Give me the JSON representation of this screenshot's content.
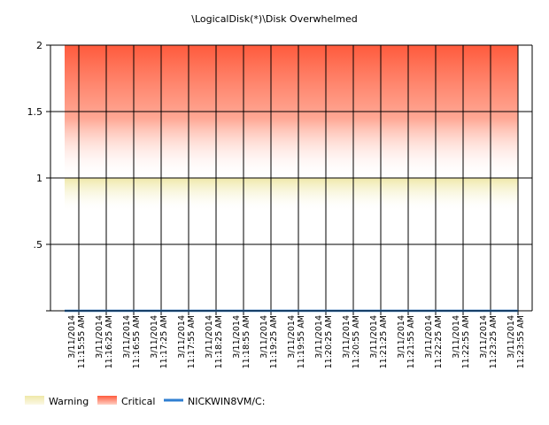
{
  "chart_data": {
    "type": "line",
    "title": "\\LogicalDisk(*)\\Disk Overwhelmed",
    "xlabel": "",
    "ylabel": "",
    "ylim": [
      0,
      2
    ],
    "y_ticks": [
      {
        "value": 0,
        "label": ""
      },
      {
        "value": 0.5,
        "label": ".5"
      },
      {
        "value": 1,
        "label": "1"
      },
      {
        "value": 1.5,
        "label": "1.5"
      },
      {
        "value": 2,
        "label": "2"
      }
    ],
    "x": [
      "3/11/2014 11:15:55 AM",
      "3/11/2014 11:16:25 AM",
      "3/11/2014 11:16:55 AM",
      "3/11/2014 11:17:25 AM",
      "3/11/2014 11:17:55 AM",
      "3/11/2014 11:18:25 AM",
      "3/11/2014 11:18:55 AM",
      "3/11/2014 11:19:25 AM",
      "3/11/2014 11:19:55 AM",
      "3/11/2014 11:20:25 AM",
      "3/11/2014 11:20:55 AM",
      "3/11/2014 11:21:25 AM",
      "3/11/2014 11:21:55 AM",
      "3/11/2014 11:22:25 AM",
      "3/11/2014 11:22:55 AM",
      "3/11/2014 11:23:25 AM",
      "3/11/2014 11:23:55 AM"
    ],
    "x_tick_lines": [
      [
        "3/11/2014",
        "11:15:55 AM"
      ],
      [
        "3/11/2014",
        "11:16:25 AM"
      ],
      [
        "3/11/2014",
        "11:16:55 AM"
      ],
      [
        "3/11/2014",
        "11:17:25 AM"
      ],
      [
        "3/11/2014",
        "11:17:55 AM"
      ],
      [
        "3/11/2014",
        "11:18:25 AM"
      ],
      [
        "3/11/2014",
        "11:18:55 AM"
      ],
      [
        "3/11/2014",
        "11:19:25 AM"
      ],
      [
        "3/11/2014",
        "11:19:55 AM"
      ],
      [
        "3/11/2014",
        "11:20:25 AM"
      ],
      [
        "3/11/2014",
        "11:20:55 AM"
      ],
      [
        "3/11/2014",
        "11:21:25 AM"
      ],
      [
        "3/11/2014",
        "11:21:55 AM"
      ],
      [
        "3/11/2014",
        "11:22:25 AM"
      ],
      [
        "3/11/2014",
        "11:22:55 AM"
      ],
      [
        "3/11/2014",
        "11:23:25 AM"
      ],
      [
        "3/11/2014",
        "11:23:55 AM"
      ]
    ],
    "bands": [
      {
        "name": "Warning",
        "from": 0.75,
        "to": 1,
        "color": "#efe8a8"
      },
      {
        "name": "Critical",
        "from": 1,
        "to": 2,
        "color": "#ff5a3c"
      }
    ],
    "series": [
      {
        "name": "NICKWIN8VM/C:",
        "color": "#2f7fd1",
        "values": [
          0,
          0,
          0,
          0,
          0,
          0,
          0,
          0,
          0,
          0,
          0,
          0,
          0,
          0,
          0,
          0,
          0
        ]
      }
    ],
    "grid": true,
    "legend_position": "bottom-left"
  }
}
